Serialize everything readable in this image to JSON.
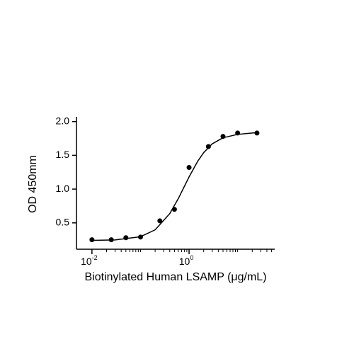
{
  "chart_data": {
    "type": "scatter",
    "xlabel": "Biotinylated Human LSAMP (μg/mL)",
    "ylabel": "OD 450mm",
    "xscale": "log",
    "xlim": [
      0.0048,
      58
    ],
    "ylim": [
      0.11,
      2.07
    ],
    "xticks": [
      {
        "value": 0.01,
        "label": "10",
        "exponent": "-2"
      },
      {
        "value": 1,
        "label": "10",
        "exponent": "0"
      }
    ],
    "xminorticks": [
      0.02,
      0.03,
      0.04,
      0.05,
      0.06,
      0.07,
      0.08,
      0.09,
      0.1,
      0.2,
      0.3,
      0.4,
      0.5,
      0.6,
      0.7,
      0.8,
      0.9,
      2,
      3,
      4,
      5,
      6,
      7,
      8,
      9,
      10,
      20,
      30,
      40,
      50
    ],
    "yticks": [
      0.5,
      {
        "value": 1,
        "label": "1.0"
      },
      1.5,
      {
        "value": 2,
        "label": "2.0"
      }
    ],
    "color": "#000000",
    "points": {
      "x": [
        0.01,
        0.025,
        0.05,
        0.1,
        0.25,
        0.5,
        1,
        2.5,
        5,
        10,
        25
      ],
      "y": [
        0.25,
        0.25,
        0.28,
        0.29,
        0.53,
        0.7,
        1.32,
        1.63,
        1.78,
        1.83,
        1.83
      ]
    },
    "curve": {
      "x": [
        0.01,
        0.03,
        0.1,
        0.2,
        0.4,
        0.6,
        0.8,
        1,
        1.5,
        2,
        3,
        5,
        10,
        20,
        25
      ],
      "y": [
        0.241,
        0.248,
        0.295,
        0.397,
        0.637,
        0.859,
        1.04,
        1.18,
        1.41,
        1.54,
        1.67,
        1.76,
        1.81,
        1.83,
        1.835
      ]
    }
  }
}
